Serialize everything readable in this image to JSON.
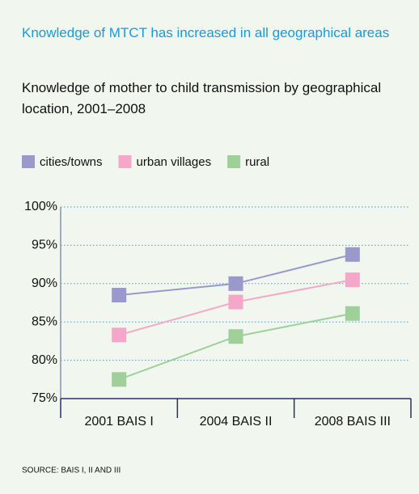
{
  "chart_data": {
    "type": "line",
    "title": "Knowledge of MTCT has increased in all geographical areas",
    "subtitle": "Knowledge of mother to child transmission by geographical location, 2001–2008",
    "source": "SOURCE: BAIS I, II AND III",
    "categories": [
      "2001 BAIS I",
      "2004 BAIS II",
      "2008 BAIS III"
    ],
    "series": [
      {
        "name": "cities/towns",
        "color": "#9b98cc",
        "values": [
          88.5,
          90,
          93.8
        ]
      },
      {
        "name": "urban villages",
        "color": "#f4a7c8",
        "values": [
          83.3,
          87.6,
          90.5
        ]
      },
      {
        "name": "rural",
        "color": "#9fd09a",
        "values": [
          77.5,
          83.1,
          86.1
        ]
      }
    ],
    "ylim": [
      75,
      100
    ],
    "yticks": [
      {
        "value": 75,
        "label": "75%"
      },
      {
        "value": 80,
        "label": "80%"
      },
      {
        "value": 85,
        "label": "85%"
      },
      {
        "value": 90,
        "label": "90%"
      },
      {
        "value": 95,
        "label": "95%"
      },
      {
        "value": 100,
        "label": "100%"
      }
    ],
    "grid": true,
    "legend": "top"
  }
}
